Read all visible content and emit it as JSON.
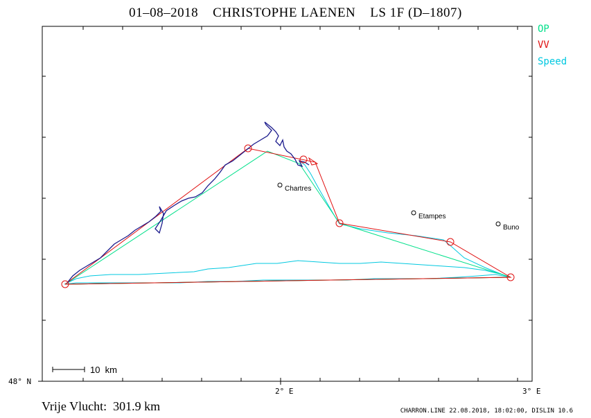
{
  "header": {
    "title": "01–08–2018    CHRISTOPHE LAENEN    LS 1F (D–1807)"
  },
  "legend": [
    {
      "label": "OP",
      "color": "#00e08a"
    },
    {
      "label": "VV",
      "color": "#e01010"
    },
    {
      "label": "Speed",
      "color": "#00c8e0"
    }
  ],
  "axes": {
    "y_label": "48° N",
    "x_labels": [
      "2° E",
      "3° E"
    ]
  },
  "places": [
    {
      "name": "Chartres"
    },
    {
      "name": "Etampes"
    },
    {
      "name": "Buno"
    }
  ],
  "scale": {
    "label": "10  km"
  },
  "footer": {
    "distance": "Vrije Vlucht:  301.9 km",
    "credit": "CHARRON.LINE 22.08.2018, 18:02:00, DISLIN 10.6"
  },
  "colors": {
    "op_line": "#00e08a",
    "vv_line": "#e01010",
    "speed_line": "#00c8e0",
    "track": "#1a1a8c"
  }
}
